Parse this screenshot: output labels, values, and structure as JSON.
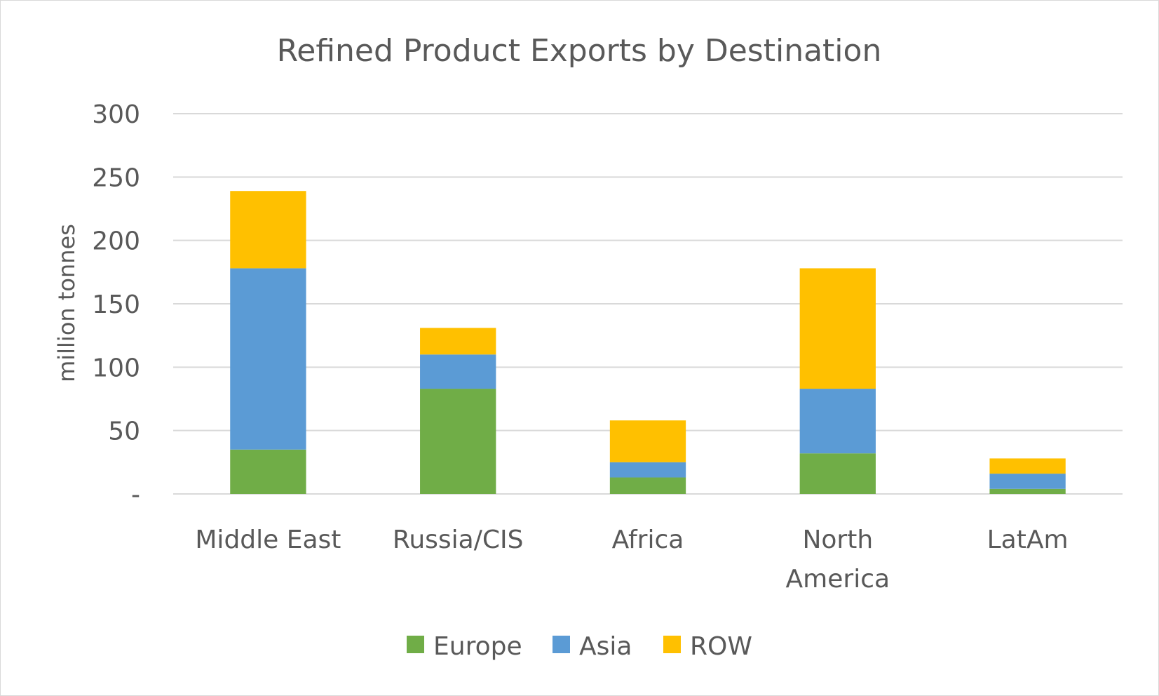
{
  "chart_data": {
    "type": "bar",
    "stacked": true,
    "title": "Refined Product Exports by Destination",
    "xlabel": "",
    "ylabel": "million tonnes",
    "ylim": [
      0,
      300
    ],
    "yticks": [
      0,
      50,
      100,
      150,
      200,
      250,
      300
    ],
    "ytick_labels": [
      "-",
      "50",
      "100",
      "150",
      "200",
      "250",
      "300"
    ],
    "categories": [
      "Middle East",
      "Russia/CIS",
      "Africa",
      "North America",
      "LatAm"
    ],
    "category_lines": [
      [
        "Middle East"
      ],
      [
        "Russia/CIS"
      ],
      [
        "Africa"
      ],
      [
        "North",
        "America"
      ],
      [
        "LatAm"
      ]
    ],
    "series": [
      {
        "name": "Europe",
        "color": "#70ad47",
        "values": [
          35,
          83,
          13,
          32,
          4
        ]
      },
      {
        "name": "Asia",
        "color": "#5b9bd5",
        "values": [
          143,
          27,
          12,
          51,
          12
        ]
      },
      {
        "name": "ROW",
        "color": "#ffc000",
        "values": [
          61,
          21,
          33,
          95,
          12
        ]
      }
    ],
    "grid": true,
    "legend": "bottom"
  }
}
